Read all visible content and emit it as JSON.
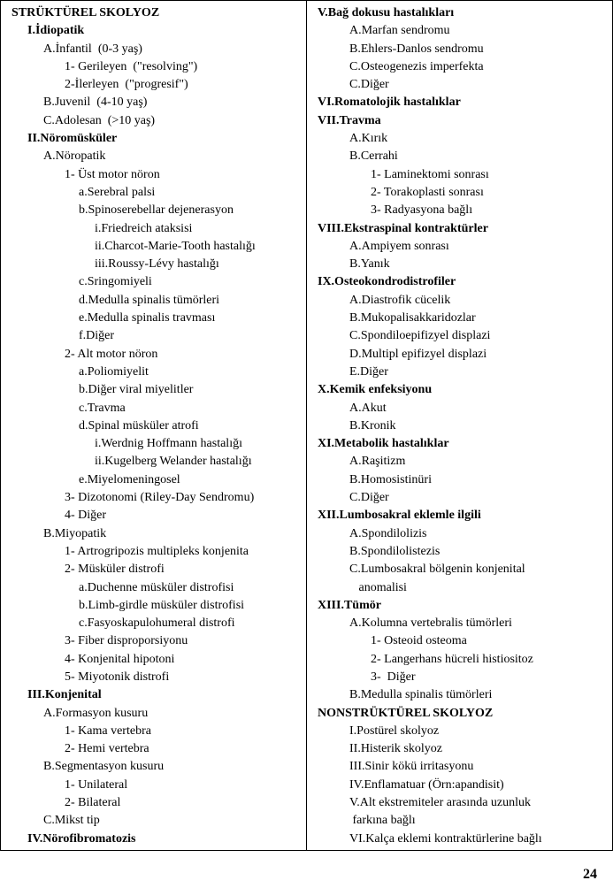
{
  "pageNumber": "24",
  "left": [
    {
      "t": "STRÜKTÜREL SKOLYOZ",
      "b": true,
      "i": 0
    },
    {
      "t": "I.İdiopatik",
      "b": true,
      "i": 1
    },
    {
      "t": "A.İnfantil  (0-3 yaş)",
      "b": false,
      "i": 2
    },
    {
      "t": "1- Gerileyen  (\"resolving\")",
      "b": false,
      "i": 3
    },
    {
      "t": "2-İlerleyen  (\"progresif\")",
      "b": false,
      "i": 3
    },
    {
      "t": "B.Juvenil  (4-10 yaş)",
      "b": false,
      "i": 2
    },
    {
      "t": "C.Adolesan  (>10 yaş)",
      "b": false,
      "i": 2
    },
    {
      "t": "II.Nöromüsküler",
      "b": true,
      "i": 1
    },
    {
      "t": "A.Nöropatik",
      "b": false,
      "i": 2
    },
    {
      "t": "1- Üst motor nöron",
      "b": false,
      "i": 3
    },
    {
      "t": "a.Serebral palsi",
      "b": false,
      "i": 4
    },
    {
      "t": "b.Spinoserebellar dejenerasyon",
      "b": false,
      "i": 4
    },
    {
      "t": "i.Friedreich ataksisi",
      "b": false,
      "i": 5
    },
    {
      "t": "ii.Charcot-Marie-Tooth hastalığı",
      "b": false,
      "i": 5
    },
    {
      "t": "iii.Roussy-Lévy hastalığı",
      "b": false,
      "i": 5
    },
    {
      "t": "c.Sringomiyeli",
      "b": false,
      "i": 4
    },
    {
      "t": "d.Medulla spinalis tümörleri",
      "b": false,
      "i": 4
    },
    {
      "t": "e.Medulla spinalis travması",
      "b": false,
      "i": 4
    },
    {
      "t": "f.Diğer",
      "b": false,
      "i": 4
    },
    {
      "t": "2- Alt motor nöron",
      "b": false,
      "i": 3
    },
    {
      "t": "a.Poliomiyelit",
      "b": false,
      "i": 4
    },
    {
      "t": "b.Diğer viral miyelitler",
      "b": false,
      "i": 4
    },
    {
      "t": "c.Travma",
      "b": false,
      "i": 4
    },
    {
      "t": "d.Spinal müsküler atrofi",
      "b": false,
      "i": 4
    },
    {
      "t": "i.Werdnig Hoffmann hastalığı",
      "b": false,
      "i": 5
    },
    {
      "t": "ii.Kugelberg Welander hastalığı",
      "b": false,
      "i": 5
    },
    {
      "t": "e.Miyelomeningosel",
      "b": false,
      "i": 4
    },
    {
      "t": "3- Dizotonomi (Riley-Day Sendromu)",
      "b": false,
      "i": 3
    },
    {
      "t": "4- Diğer",
      "b": false,
      "i": 3
    },
    {
      "t": "B.Miyopatik",
      "b": false,
      "i": 2
    },
    {
      "t": "1- Artrogripozis multipleks konjenita",
      "b": false,
      "i": 3
    },
    {
      "t": "2- Müsküler distrofi",
      "b": false,
      "i": 3
    },
    {
      "t": "a.Duchenne müsküler distrofisi",
      "b": false,
      "i": 4
    },
    {
      "t": "b.Limb-girdle müsküler distrofisi",
      "b": false,
      "i": 4
    },
    {
      "t": "c.Fasyoskapulohumeral distrofi",
      "b": false,
      "i": 4
    },
    {
      "t": "3- Fiber disproporsiyonu",
      "b": false,
      "i": 3
    },
    {
      "t": "4- Konjenital hipotoni",
      "b": false,
      "i": 3
    },
    {
      "t": "5- Miyotonik distrofi",
      "b": false,
      "i": 3
    },
    {
      "t": "III.Konjenital",
      "b": true,
      "i": 1
    },
    {
      "t": "A.Formasyon kusuru",
      "b": false,
      "i": 2
    },
    {
      "t": "1- Kama vertebra",
      "b": false,
      "i": 3
    },
    {
      "t": "2- Hemi vertebra",
      "b": false,
      "i": 3
    },
    {
      "t": "B.Segmentasyon kusuru",
      "b": false,
      "i": 2
    },
    {
      "t": "1- Unilateral",
      "b": false,
      "i": 3
    },
    {
      "t": "2- Bilateral",
      "b": false,
      "i": 3
    },
    {
      "t": "C.Mikst tip",
      "b": false,
      "i": 2
    },
    {
      "t": "IV.Nörofibromatozis",
      "b": true,
      "i": 1
    }
  ],
  "right": [
    {
      "t": "V.Bağ dokusu hastalıkları",
      "b": true,
      "i": 0
    },
    {
      "t": "A.Marfan sendromu",
      "b": false,
      "i": 2
    },
    {
      "t": "B.Ehlers-Danlos sendromu",
      "b": false,
      "i": 2
    },
    {
      "t": "C.Osteogenezis imperfekta",
      "b": false,
      "i": 2
    },
    {
      "t": "C.Diğer",
      "b": false,
      "i": 2
    },
    {
      "t": "VI.Romatolojik hastalıklar",
      "b": true,
      "i": 0
    },
    {
      "t": "VII.Travma",
      "b": true,
      "i": 0
    },
    {
      "t": "A.Kırık",
      "b": false,
      "i": 2
    },
    {
      "t": "B.Cerrahi",
      "b": false,
      "i": 2
    },
    {
      "t": "1- Laminektomi sonrası",
      "b": false,
      "i": 3
    },
    {
      "t": "2- Torakoplasti sonrası",
      "b": false,
      "i": 3
    },
    {
      "t": "3- Radyasyona bağlı",
      "b": false,
      "i": 3
    },
    {
      "t": "VIII.Ekstraspinal kontraktürler",
      "b": true,
      "i": 0
    },
    {
      "t": "A.Ampiyem sonrası",
      "b": false,
      "i": 2
    },
    {
      "t": "B.Yanık",
      "b": false,
      "i": 2
    },
    {
      "t": "IX.Osteokondrodistrofiler",
      "b": true,
      "i": 0
    },
    {
      "t": "A.Diastrofik cücelik",
      "b": false,
      "i": 2
    },
    {
      "t": "B.Mukopalisakkaridozlar",
      "b": false,
      "i": 2
    },
    {
      "t": "C.Spondiloepifizyel displazi",
      "b": false,
      "i": 2
    },
    {
      "t": "D.Multipl epifizyel displazi",
      "b": false,
      "i": 2
    },
    {
      "t": "E.Diğer",
      "b": false,
      "i": 2
    },
    {
      "t": "X.Kemik enfeksiyonu",
      "b": true,
      "i": 0
    },
    {
      "t": "A.Akut",
      "b": false,
      "i": 2
    },
    {
      "t": "B.Kronik",
      "b": false,
      "i": 2
    },
    {
      "t": "XI.Metabolik hastalıklar",
      "b": true,
      "i": 0
    },
    {
      "t": "A.Raşitizm",
      "b": false,
      "i": 2
    },
    {
      "t": "B.Homosistinüri",
      "b": false,
      "i": 2
    },
    {
      "t": "C.Diğer",
      "b": false,
      "i": 2
    },
    {
      "t": "XII.Lumbosakral eklemle ilgili",
      "b": true,
      "i": 0
    },
    {
      "t": "A.Spondilolizis",
      "b": false,
      "i": 2
    },
    {
      "t": "B.Spondilolistezis",
      "b": false,
      "i": 2
    },
    {
      "t": "C.Lumbosakral bölgenin konjenital",
      "b": false,
      "i": 2
    },
    {
      "t": "   anomalisi",
      "b": false,
      "i": 2
    },
    {
      "t": "XIII.Tümör",
      "b": true,
      "i": 0
    },
    {
      "t": "A.Kolumna vertebralis tümörleri",
      "b": false,
      "i": 2
    },
    {
      "t": "1- Osteoid osteoma",
      "b": false,
      "i": 3
    },
    {
      "t": "2- Langerhans hücreli histiositoz",
      "b": false,
      "i": 3
    },
    {
      "t": "3-  Diğer",
      "b": false,
      "i": 3
    },
    {
      "t": "B.Medulla spinalis tümörleri",
      "b": false,
      "i": 2
    },
    {
      "t": "NONSTRÜKTÜREL SKOLYOZ",
      "b": true,
      "i": 0
    },
    {
      "t": "I.Postürel skolyoz",
      "b": false,
      "i": 2
    },
    {
      "t": "II.Histerik skolyoz",
      "b": false,
      "i": 2
    },
    {
      "t": "III.Sinir kökü irritasyonu",
      "b": false,
      "i": 2
    },
    {
      "t": "IV.Enflamatuar (Örn:apandisit)",
      "b": false,
      "i": 2
    },
    {
      "t": "V.Alt ekstremiteler arasında uzunluk",
      "b": false,
      "i": 2
    },
    {
      "t": " farkına bağlı",
      "b": false,
      "i": 2
    },
    {
      "t": "VI.Kalça eklemi kontraktürlerine bağlı",
      "b": false,
      "i": 2
    }
  ]
}
